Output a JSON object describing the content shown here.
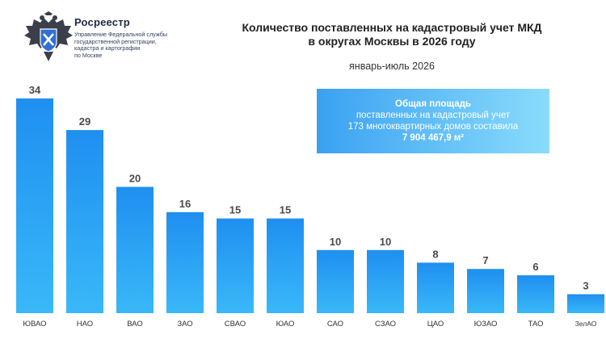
{
  "logo": {
    "emblem_icon": "double-headed-eagle-icon",
    "name": "Росреестр",
    "subtitle_lines": [
      "Управление Федеральной службы",
      "государственной регистрации,",
      "кадастра и картографии",
      "по Москве"
    ]
  },
  "info_box": {
    "lines": [
      "Общая площадь",
      "поставленных на кадастровый учет",
      "173 многоквартирных домов составила",
      "7 904 467,9 м²"
    ],
    "colors": {
      "from": "#3aa1f2",
      "to": "#8adcfb"
    }
  },
  "chart_data": {
    "type": "bar",
    "title_lines": [
      "Количество поставленных на кадастровый учет МКД",
      "в округах Москвы в 2026 году"
    ],
    "subtitle": "январь-июль 2026",
    "categories": [
      "ЮВАО",
      "НАО",
      "ВАО",
      "ЗАО",
      "СВАО",
      "ЮАО",
      "САО",
      "СЗАО",
      "ЦАО",
      "ЮЗАО",
      "ТАО",
      "ЗелАО"
    ],
    "values": [
      34,
      29,
      20,
      16,
      15,
      15,
      10,
      10,
      8,
      7,
      6,
      3
    ],
    "xlabel": "",
    "ylabel": "",
    "ylim": [
      0,
      34
    ],
    "grid": false,
    "legend": "none",
    "data_labels": true,
    "bar_colors": {
      "top": "#1f8ff0",
      "bottom": "#39b8f8"
    },
    "label_color": "#4a4a4a"
  }
}
